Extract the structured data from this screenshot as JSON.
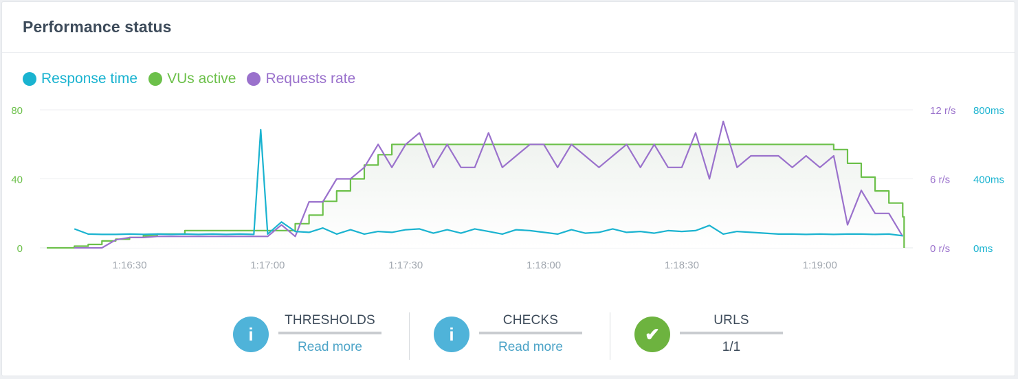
{
  "header": {
    "title": "Performance status"
  },
  "colors": {
    "response": "#1ab3d0",
    "vus": "#6cc04a",
    "rate": "#9a71cc",
    "info_icon": "#4fb3d9",
    "check_icon": "#6db33f"
  },
  "legend": [
    {
      "label": "Response time",
      "color": "#1ab3d0"
    },
    {
      "label": "VUs active",
      "color": "#6cc04a"
    },
    {
      "label": "Requests rate",
      "color": "#9a71cc"
    }
  ],
  "chart_data": {
    "type": "line",
    "x_ticks": [
      "1:16:30",
      "1:17:00",
      "1:17:30",
      "1:18:00",
      "1:18:30",
      "1:19:00"
    ],
    "x_tick_seconds": [
      30,
      60,
      90,
      120,
      150,
      180
    ],
    "xlim": [
      12,
      199
    ],
    "y_left": {
      "ticks": [
        "80",
        "40",
        "0"
      ],
      "range": [
        0,
        80
      ],
      "color": "#6cc04a"
    },
    "y_right_rate": {
      "ticks": [
        "12 r/s",
        "6 r/s",
        "0 r/s"
      ],
      "range": [
        0,
        12
      ],
      "color": "#9a71cc"
    },
    "y_right_resp": {
      "ticks": [
        "800ms",
        "400ms",
        "0ms"
      ],
      "range": [
        0,
        800
      ],
      "color": "#1ab3d0"
    },
    "series": [
      {
        "name": "VUs active",
        "axis": "left",
        "step": true,
        "fill": true,
        "x": [
          12,
          18,
          21,
          24,
          27,
          30,
          33,
          36,
          39,
          42,
          45,
          48,
          51,
          54,
          57,
          60,
          63,
          66,
          69,
          72,
          75,
          78,
          81,
          84,
          87,
          90,
          93,
          96,
          99,
          102,
          105,
          108,
          111,
          114,
          117,
          120,
          123,
          126,
          129,
          132,
          135,
          138,
          141,
          144,
          147,
          150,
          153,
          156,
          159,
          162,
          165,
          168,
          171,
          174,
          177,
          180,
          183,
          186,
          189,
          192,
          195,
          198
        ],
        "y": [
          0,
          1,
          2,
          4,
          5,
          6,
          7,
          8,
          8,
          10,
          10,
          10,
          10,
          10,
          10,
          10,
          10,
          14,
          19,
          27,
          33,
          40,
          48,
          54,
          60,
          60,
          60,
          60,
          60,
          60,
          60,
          60,
          60,
          60,
          60,
          60,
          60,
          60,
          60,
          60,
          60,
          60,
          60,
          60,
          60,
          60,
          60,
          60,
          60,
          60,
          60,
          60,
          60,
          60,
          60,
          60,
          57,
          49,
          41,
          33,
          26,
          18
        ]
      },
      {
        "name": "Requests rate",
        "axis": "right_rate",
        "step": false,
        "x": [
          18,
          21,
          24,
          27,
          30,
          33,
          36,
          39,
          42,
          45,
          48,
          51,
          54,
          57,
          60,
          63,
          66,
          69,
          72,
          75,
          78,
          81,
          84,
          87,
          90,
          93,
          96,
          99,
          102,
          105,
          108,
          111,
          114,
          117,
          120,
          123,
          126,
          129,
          132,
          135,
          138,
          141,
          144,
          147,
          150,
          153,
          156,
          159,
          162,
          165,
          168,
          171,
          174,
          177,
          180,
          183,
          186,
          189,
          192,
          195,
          198
        ],
        "y": [
          0,
          0,
          0,
          0.7,
          0.9,
          0.9,
          1.0,
          1.0,
          1.0,
          1.0,
          1.0,
          1.0,
          1.0,
          1.0,
          1.0,
          2.0,
          1.0,
          4.0,
          4.0,
          6.0,
          6.0,
          7.0,
          9.0,
          7.0,
          9.0,
          10.0,
          7.0,
          9.0,
          7.0,
          7.0,
          10.0,
          7.0,
          8.0,
          9.0,
          9.0,
          7.0,
          9.0,
          8.0,
          7.0,
          8.0,
          9.0,
          7.0,
          9.0,
          7.0,
          7.0,
          10.0,
          6.0,
          11.0,
          7.0,
          8.0,
          8.0,
          8.0,
          7.0,
          8.0,
          7.0,
          8.0,
          2.0,
          5.0,
          3.0,
          3.0,
          1.0
        ]
      },
      {
        "name": "Response time",
        "axis": "right_resp",
        "step": false,
        "x": [
          18,
          21,
          24,
          27,
          30,
          33,
          36,
          39,
          42,
          45,
          48,
          51,
          54,
          57,
          58.5,
          60,
          63,
          66,
          69,
          72,
          75,
          78,
          81,
          84,
          87,
          90,
          93,
          96,
          99,
          102,
          105,
          108,
          111,
          114,
          117,
          120,
          123,
          126,
          129,
          132,
          135,
          138,
          141,
          144,
          147,
          150,
          153,
          156,
          159,
          162,
          165,
          168,
          171,
          174,
          177,
          180,
          183,
          186,
          189,
          192,
          195,
          198
        ],
        "y": [
          110,
          80,
          78,
          78,
          80,
          78,
          80,
          78,
          80,
          78,
          80,
          78,
          80,
          78,
          685,
          80,
          150,
          95,
          90,
          115,
          80,
          105,
          80,
          95,
          90,
          105,
          110,
          85,
          105,
          85,
          110,
          95,
          80,
          105,
          100,
          90,
          80,
          105,
          85,
          90,
          110,
          90,
          95,
          85,
          100,
          95,
          100,
          130,
          80,
          95,
          90,
          85,
          80,
          80,
          78,
          80,
          78,
          80,
          80,
          78,
          80,
          70
        ]
      }
    ]
  },
  "footer": {
    "thresholds": {
      "title": "THRESHOLDS",
      "link": "Read more",
      "icon": "i"
    },
    "checks": {
      "title": "CHECKS",
      "link": "Read more",
      "icon": "i"
    },
    "urls": {
      "title": "URLS",
      "value": "1/1",
      "icon": "✔"
    }
  }
}
